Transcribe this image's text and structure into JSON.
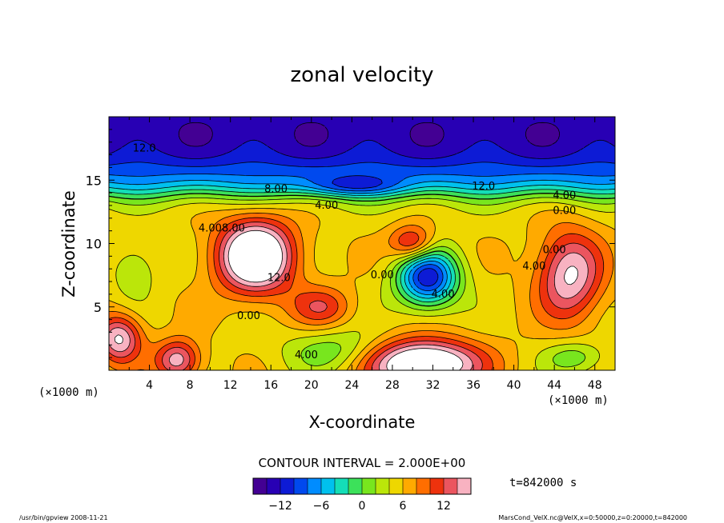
{
  "chart_data": {
    "type": "heatmap",
    "title": "zonal velocity",
    "xlabel": "X-coordinate",
    "ylabel": "Z-coordinate",
    "x_unit_left": "(×1000 m)",
    "x_unit_right": "(×1000 m)",
    "xlim": [
      0,
      50
    ],
    "ylim": [
      0,
      20
    ],
    "x_ticks": [
      4,
      8,
      12,
      16,
      20,
      24,
      28,
      32,
      36,
      40,
      44,
      48
    ],
    "x_tick_labels": [
      "4",
      "8",
      "12",
      "16",
      "20",
      "24",
      "28",
      "32",
      "36",
      "40",
      "44",
      "48"
    ],
    "y_ticks": [
      5,
      10,
      15
    ],
    "y_tick_labels": [
      "5",
      "10",
      "15"
    ],
    "contour_interval_text": "CONTOUR INTERVAL = 2.000E+00",
    "time_text": "t=842000 s",
    "colorbar": {
      "min": -16,
      "max": 16,
      "ticks": [
        -12,
        -6,
        0,
        6,
        12
      ],
      "tick_labels": [
        "−12",
        "−6",
        "0",
        "6",
        "12"
      ]
    },
    "contour_labels": [
      {
        "text": "12.0",
        "x": 3.5,
        "z": 17.5
      },
      {
        "text": "8.00",
        "x": 16.5,
        "z": 14.3
      },
      {
        "text": "4.00",
        "x": 21.5,
        "z": 13.0
      },
      {
        "text": "12.0",
        "x": 37.0,
        "z": 14.5
      },
      {
        "text": "4.00",
        "x": 45.0,
        "z": 13.8
      },
      {
        "text": "0.00",
        "x": 45.0,
        "z": 12.6
      },
      {
        "text": "4.00",
        "x": 10.0,
        "z": 11.2
      },
      {
        "text": "8.00",
        "x": 12.3,
        "z": 11.2
      },
      {
        "text": "12.0",
        "x": 16.8,
        "z": 7.3
      },
      {
        "text": "0.00",
        "x": 13.8,
        "z": 4.3
      },
      {
        "text": "4.00",
        "x": 19.5,
        "z": 1.2
      },
      {
        "text": "4.00",
        "x": 33.0,
        "z": 6.0
      },
      {
        "text": "0.00",
        "x": 27.0,
        "z": 7.5
      },
      {
        "text": "4.00",
        "x": 42.0,
        "z": 8.2
      },
      {
        "text": "0.00",
        "x": 44.0,
        "z": 9.5
      }
    ],
    "features": [
      {
        "x": 14.5,
        "z": 9.0,
        "peak": 17,
        "sx": 3.8,
        "sz": 2.9
      },
      {
        "x": 30.0,
        "z": 10.0,
        "peak": 9,
        "sx": 2.2,
        "sz": 1.4
      },
      {
        "x": 45.5,
        "z": 7.5,
        "peak": 11,
        "sx": 3.2,
        "sz": 3.5
      },
      {
        "x": 31.0,
        "z": 0.5,
        "peak": 17,
        "sx": 5.5,
        "sz": 1.9
      },
      {
        "x": 1.0,
        "z": 2.5,
        "peak": 11,
        "sx": 2.2,
        "sz": 1.9
      },
      {
        "x": 6.8,
        "z": 0.8,
        "peak": 10,
        "sx": 2.2,
        "sz": 1.6
      },
      {
        "x": 21.0,
        "z": 5.0,
        "peak": 6,
        "sx": 3.0,
        "sz": 1.6
      },
      {
        "x": 24.0,
        "z": 14.5,
        "peak": -6,
        "sx": 5.0,
        "sz": 0.8
      },
      {
        "x": 31.5,
        "z": 7.3,
        "peak": -17,
        "sx": 3.0,
        "sz": 2.3
      },
      {
        "x": 22.5,
        "z": 1.5,
        "peak": -5,
        "sx": 5.0,
        "sz": 1.8
      },
      {
        "x": 2.5,
        "z": 7.8,
        "peak": -4,
        "sx": 2.0,
        "sz": 2.0
      },
      {
        "x": 46.0,
        "z": 1.0,
        "peak": -5,
        "sx": 3.0,
        "sz": 1.3
      }
    ]
  },
  "footer": {
    "left": "/usr/bin/gpview   2008-11-21",
    "right": "MarsCond_VelX.nc@VelX,x=0:50000,z=0:20000,t=842000"
  }
}
